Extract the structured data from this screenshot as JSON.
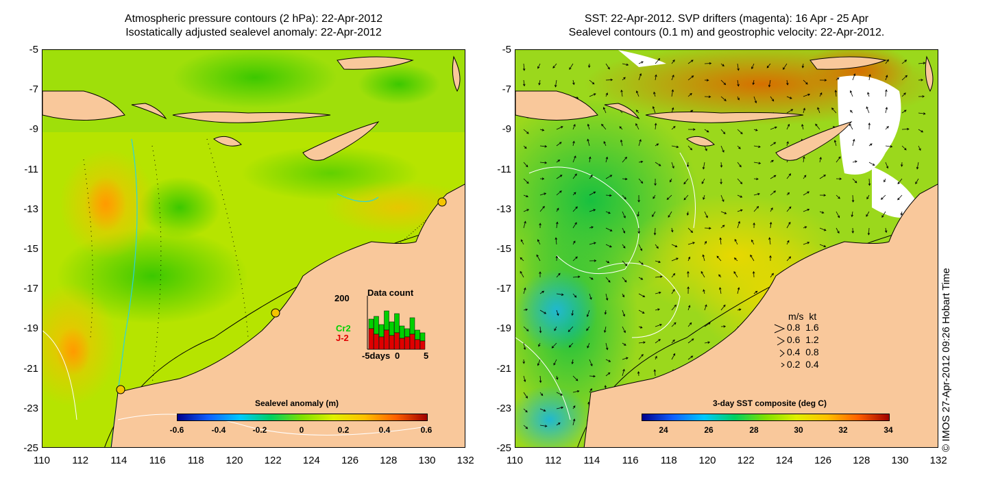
{
  "left_panel": {
    "title_line1": "Atmospheric pressure contours (2 hPa): 22-Apr-2012",
    "title_line2": "Isostatically adjusted sealevel anomaly: 22-Apr-2012",
    "colorbar_label": "Sealevel anomaly (m)",
    "colorbar_ticks": [
      "-0.6",
      "-0.4",
      "-0.2",
      "0",
      "0.2",
      "0.4",
      "0.6"
    ],
    "inset": {
      "title": "Data count",
      "y_max": "200",
      "series": [
        "Cr2",
        "J-2"
      ],
      "x_ticks": [
        "-5days",
        "0",
        "5"
      ],
      "colors": {
        "Cr2": "#00d000",
        "J-2": "#e00000"
      }
    }
  },
  "right_panel": {
    "title_line1": "SST: 22-Apr-2012. SVP drifters (magenta): 16 Apr - 25 Apr",
    "title_line2": "Sealevel contours (0.1 m) and geostrophic velocity: 22-Apr-2012.",
    "colorbar_label": "3-day SST composite (deg C)",
    "colorbar_ticks": [
      "24",
      "26",
      "28",
      "30",
      "32",
      "34"
    ],
    "velocity_legend": {
      "header": "m/s  kt",
      "rows": [
        "0.8  1.6",
        "0.6  1.2",
        "0.4  0.8",
        "0.2  0.4"
      ]
    }
  },
  "axes": {
    "y_ticks": [
      "-5",
      "-7",
      "-9",
      "-11",
      "-13",
      "-15",
      "-17",
      "-19",
      "-21",
      "-23",
      "-25"
    ],
    "x_ticks": [
      "110",
      "112",
      "114",
      "116",
      "118",
      "120",
      "122",
      "124",
      "126",
      "128",
      "130",
      "132"
    ]
  },
  "credit": "© IMOS 27-Apr-2012 09:26 Hobart Time",
  "colors": {
    "land": "#f9c89b",
    "coast_line": "#000000",
    "bathymetry_line": "#2ad4e0",
    "sla_gradient": [
      "#00008c",
      "#1060ff",
      "#00c8ff",
      "#00d060",
      "#80e000",
      "#e0f000",
      "#ffc000",
      "#ff6000",
      "#a00000"
    ],
    "sst_gradient": [
      "#00008c",
      "#1060ff",
      "#00c8ff",
      "#00d060",
      "#80e000",
      "#e0f000",
      "#ffc000",
      "#ff6000",
      "#a00000"
    ]
  }
}
